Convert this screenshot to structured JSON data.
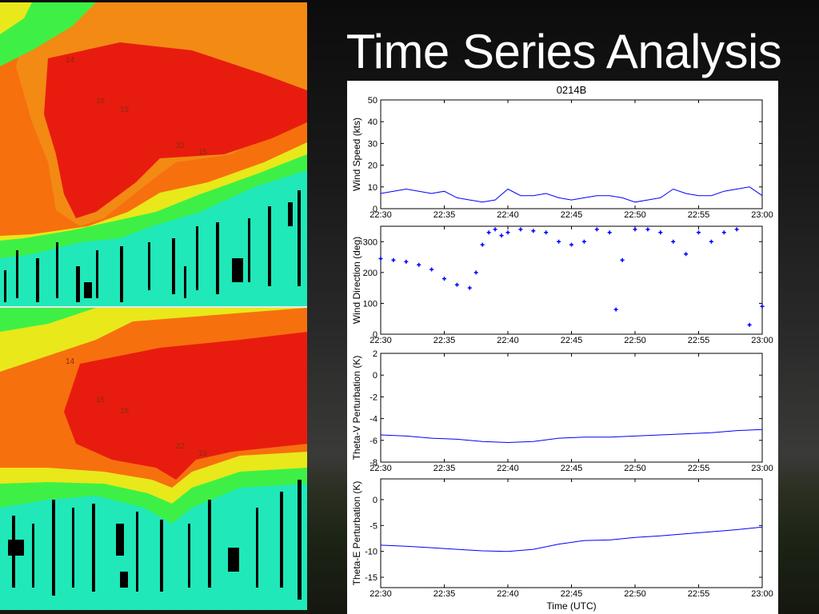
{
  "slide": {
    "title": "Time Series Analysis"
  },
  "radar_labels": {
    "top": [
      "14",
      "16",
      "19",
      "22",
      "15"
    ],
    "bottom": [
      "14",
      "16",
      "18",
      "22",
      "15"
    ]
  },
  "colors": {
    "series": "#0000ff",
    "radar_red": "#e81c0e",
    "radar_orange": "#f7700e",
    "radar_yellow": "#e8e81a",
    "radar_green": "#3ef046",
    "radar_cyan": "#20e8b8"
  },
  "chart_data": {
    "title": "0214B",
    "xlabel": "Time (UTC)",
    "x_ticks": [
      "22:30",
      "22:35",
      "22:40",
      "22:45",
      "22:50",
      "22:55",
      "23:00"
    ],
    "xlim": [
      "22:30",
      "23:00"
    ],
    "panels": [
      {
        "type": "line",
        "ylabel": "Wind Speed (kts)",
        "ylim": [
          0,
          50
        ],
        "y_ticks": [
          0,
          10,
          20,
          30,
          40,
          50
        ],
        "series": [
          {
            "x": [
              "22:30",
              "22:31",
              "22:32",
              "22:33",
              "22:34",
              "22:35",
              "22:36",
              "22:37",
              "22:38",
              "22:39",
              "22:40",
              "22:41",
              "22:42",
              "22:43",
              "22:44",
              "22:45",
              "22:46",
              "22:47",
              "22:48",
              "22:49",
              "22:50",
              "22:51",
              "22:52",
              "22:53",
              "22:54",
              "22:55",
              "22:56",
              "22:57",
              "22:58",
              "22:59",
              "23:00"
            ],
            "y": [
              7,
              8,
              9,
              8,
              7,
              8,
              5,
              4,
              3,
              4,
              9,
              6,
              6,
              7,
              5,
              4,
              5,
              6,
              6,
              5,
              3,
              4,
              5,
              9,
              7,
              6,
              6,
              8,
              9,
              10,
              6
            ]
          }
        ]
      },
      {
        "type": "scatter",
        "ylabel": "Wind Direction (deg)",
        "ylim": [
          0,
          350
        ],
        "y_ticks": [
          0,
          100,
          200,
          300
        ],
        "series": [
          {
            "x": [
              "22:30",
              "22:31",
              "22:32",
              "22:33",
              "22:34",
              "22:35",
              "22:36",
              "22:37",
              "22:37.5",
              "22:38",
              "22:38.5",
              "22:39",
              "22:39.5",
              "22:40",
              "22:41",
              "22:42",
              "22:43",
              "22:44",
              "22:45",
              "22:46",
              "22:47",
              "22:48",
              "22:48.5",
              "22:49",
              "22:50",
              "22:51",
              "22:52",
              "22:53",
              "22:54",
              "22:55",
              "22:56",
              "22:57",
              "22:58",
              "22:59",
              "23:00"
            ],
            "y": [
              245,
              240,
              235,
              225,
              210,
              180,
              160,
              150,
              200,
              290,
              330,
              340,
              320,
              330,
              340,
              335,
              330,
              300,
              290,
              300,
              340,
              330,
              80,
              240,
              340,
              340,
              330,
              300,
              260,
              330,
              300,
              330,
              340,
              30,
              90
            ]
          }
        ]
      },
      {
        "type": "line",
        "ylabel": "Theta-V Perturbation (K)",
        "ylim": [
          -8,
          2
        ],
        "y_ticks": [
          -8,
          -6,
          -4,
          -2,
          0,
          2
        ],
        "series": [
          {
            "x": [
              "22:30",
              "22:32",
              "22:34",
              "22:36",
              "22:38",
              "22:40",
              "22:42",
              "22:44",
              "22:46",
              "22:48",
              "22:50",
              "22:52",
              "22:54",
              "22:56",
              "22:58",
              "23:00"
            ],
            "y": [
              -5.5,
              -5.6,
              -5.8,
              -5.9,
              -6.1,
              -6.2,
              -6.1,
              -5.8,
              -5.7,
              -5.7,
              -5.6,
              -5.5,
              -5.4,
              -5.3,
              -5.1,
              -5.0
            ]
          }
        ]
      },
      {
        "type": "line",
        "ylabel": "Theta-E Perturbation (K)",
        "ylim": [
          -17,
          4
        ],
        "y_ticks": [
          -15,
          -10,
          -5,
          0
        ],
        "series": [
          {
            "x": [
              "22:30",
              "22:32",
              "22:34",
              "22:36",
              "22:38",
              "22:40",
              "22:42",
              "22:44",
              "22:46",
              "22:48",
              "22:50",
              "22:52",
              "22:54",
              "22:56",
              "22:58",
              "23:00"
            ],
            "y": [
              -8.8,
              -9.0,
              -9.3,
              -9.6,
              -9.9,
              -10.0,
              -9.6,
              -8.6,
              -7.9,
              -7.8,
              -7.3,
              -7.0,
              -6.6,
              -6.2,
              -5.8,
              -5.3
            ]
          }
        ]
      }
    ]
  }
}
